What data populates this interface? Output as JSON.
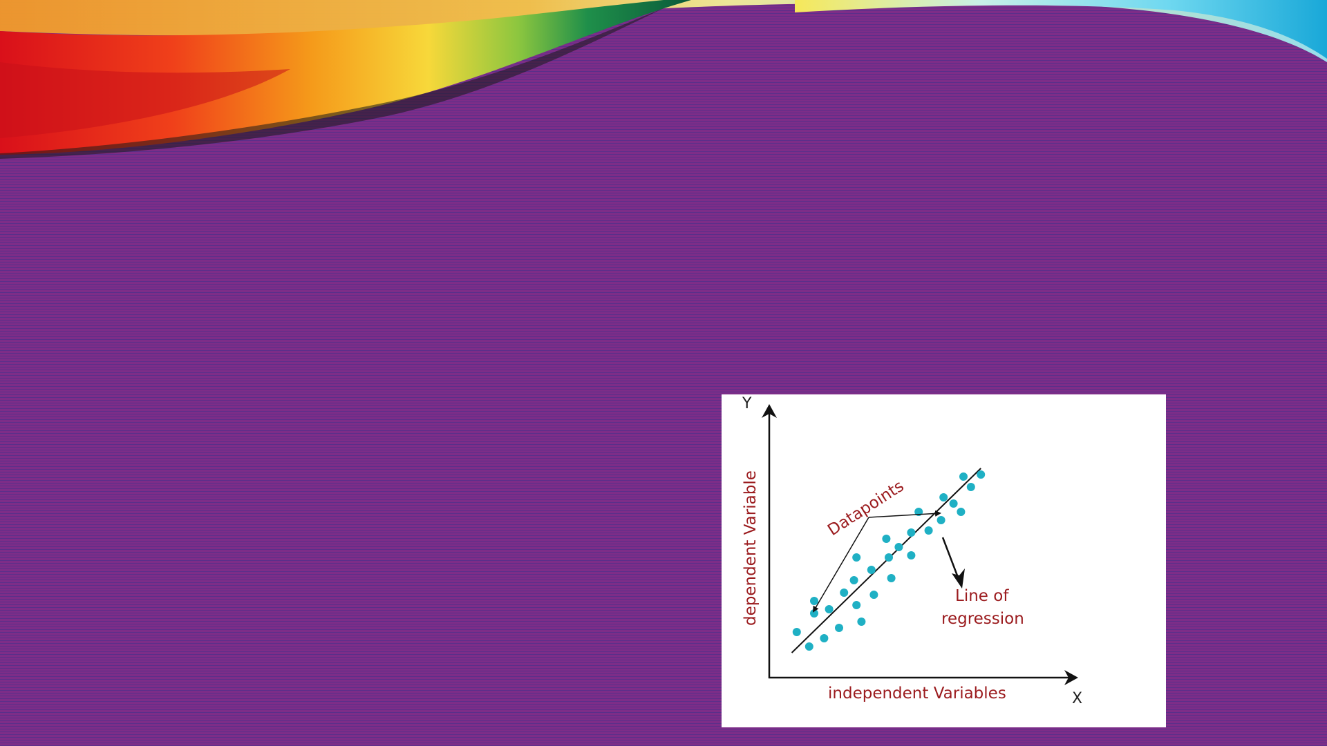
{
  "colors": {
    "background": "#7d2d88",
    "stripe": "#5a2f8a",
    "point": "#1fb0c4",
    "label": "#9b1b1e",
    "line": "#111111"
  },
  "figure": {
    "y_axis_letter": "Y",
    "x_axis_letter": "X",
    "y_axis_label": "dependent Variable",
    "x_axis_label": "independent Variables",
    "datapoints_label": "Datapoints",
    "regression_label_line1": "Line of",
    "regression_label_line2": "regression"
  },
  "chart_data": {
    "type": "scatter",
    "xlim": [
      0,
      100
    ],
    "ylim": [
      0,
      100
    ],
    "points": [
      [
        8,
        17
      ],
      [
        13,
        10
      ],
      [
        15,
        26
      ],
      [
        15,
        32
      ],
      [
        19,
        14
      ],
      [
        21,
        28
      ],
      [
        25,
        19
      ],
      [
        27,
        36
      ],
      [
        31,
        42
      ],
      [
        32,
        30
      ],
      [
        32,
        53
      ],
      [
        34,
        22
      ],
      [
        38,
        47
      ],
      [
        39,
        35
      ],
      [
        44,
        62
      ],
      [
        45,
        53
      ],
      [
        46,
        43
      ],
      [
        49,
        58
      ],
      [
        54,
        65
      ],
      [
        54,
        54
      ],
      [
        57,
        75
      ],
      [
        61,
        66
      ],
      [
        66,
        71
      ],
      [
        67,
        82
      ],
      [
        71,
        79
      ],
      [
        74,
        75
      ],
      [
        75,
        92
      ],
      [
        78,
        87
      ],
      [
        82,
        93
      ]
    ],
    "regression_line": {
      "x": [
        6,
        82
      ],
      "y": [
        7,
        96
      ]
    }
  }
}
